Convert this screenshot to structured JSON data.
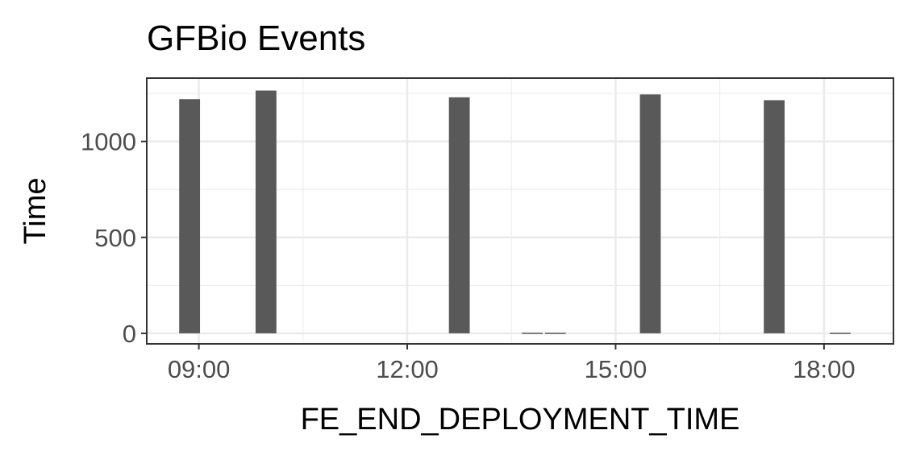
{
  "chart_data": {
    "type": "bar",
    "title": "GFBio Events",
    "xlabel": "FE_END_DEPLOYMENT_TIME",
    "ylabel": "Time",
    "x_unit": "hour of day",
    "xlim": [
      8.25,
      19.0
    ],
    "ylim": [
      -55,
      1330
    ],
    "x_ticks": [
      9,
      12,
      15,
      18
    ],
    "x_tick_labels": [
      "09:00",
      "12:00",
      "15:00",
      "18:00"
    ],
    "y_ticks": [
      0,
      500,
      1000
    ],
    "y_tick_labels": [
      "0",
      "500",
      "1000"
    ],
    "bin_width_hours": 0.3,
    "bins": [
      {
        "time": "08:52",
        "count": 1220
      },
      {
        "time": "09:58",
        "count": 1265
      },
      {
        "time": "12:45",
        "count": 1230
      },
      {
        "time": "13:48",
        "count": 3
      },
      {
        "time": "14:08",
        "count": 3
      },
      {
        "time": "15:30",
        "count": 1245
      },
      {
        "time": "17:17",
        "count": 1215
      },
      {
        "time": "18:14",
        "count": 3
      }
    ],
    "grid": true,
    "legend": "none",
    "colors": {
      "bar": "#595959",
      "grid": "#ebebeb",
      "panel_border": "#333333"
    }
  }
}
